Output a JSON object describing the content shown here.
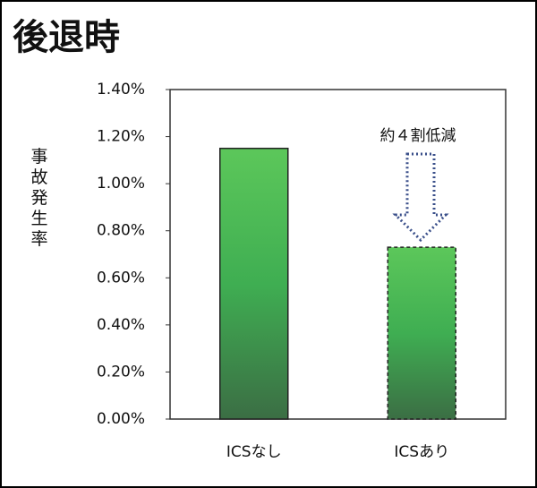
{
  "chart_data": {
    "type": "bar",
    "title": "後退時",
    "y_label": "事故発生率",
    "categories": [
      "ICSなし",
      "ICSあり"
    ],
    "values": [
      1.15,
      0.73
    ],
    "color": "#4caf50",
    "ylim": [
      0,
      1.4
    ],
    "yticks": [
      {
        "value": 0,
        "label": "0.00%"
      },
      {
        "value": 0.2,
        "label": "0.20%"
      },
      {
        "value": 0.4,
        "label": "0.40%"
      },
      {
        "value": 0.6,
        "label": "0.60%"
      },
      {
        "value": 0.8,
        "label": "0.80%"
      },
      {
        "value": 1.0,
        "label": "1.00%"
      },
      {
        "value": 1.2,
        "label": "1.20%"
      },
      {
        "value": 1.4,
        "label": "1.40%"
      }
    ],
    "annotation": "約４割低減"
  }
}
